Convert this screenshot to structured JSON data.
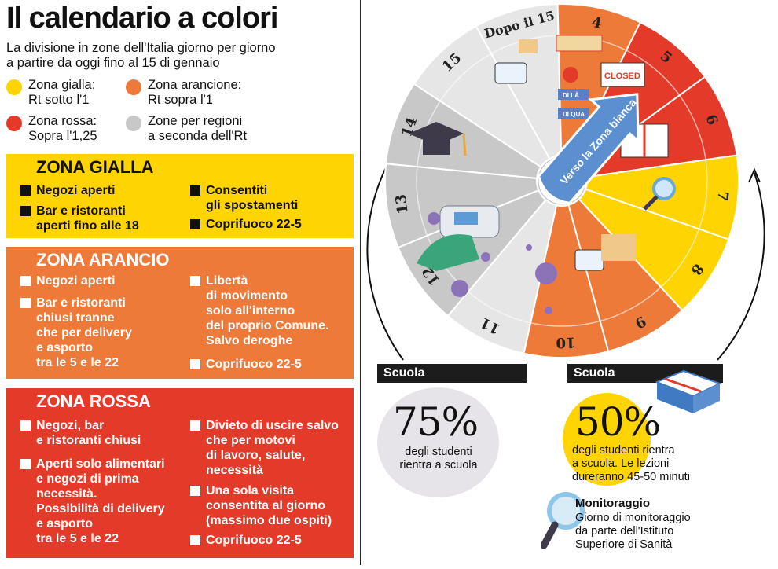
{
  "title": "Il calendario a colori",
  "subtitle_lines": [
    "La divisione in zone dell'Italia giorno per giorno",
    "a partire da oggi fino al 15 di gennaio"
  ],
  "legend": [
    {
      "line1": "Zona gialla:",
      "line2": "Rt sotto l'1",
      "color": "#ffd400"
    },
    {
      "line1": "Zona arancione:",
      "line2": "Rt sopra l'1",
      "color": "#ee7a3a"
    },
    {
      "line1": "Zona rossa:",
      "line2": "Sopra l'1,25",
      "color": "#e43a2a"
    },
    {
      "line1": "Zone per regioni",
      "line2": "a seconda dell'Rt",
      "color": "#c8c8c8"
    }
  ],
  "zona_gialla": {
    "title": "ZONA GIALLA",
    "left": [
      "Negozi aperti",
      "Bar e ristoranti",
      "aperti fino alle 18"
    ],
    "right": [
      "Consentiti",
      "gli spostamenti",
      "Coprifuoco 22-5"
    ]
  },
  "zona_arancio": {
    "title": "ZONA ARANCIO",
    "left": [
      "Negozi aperti",
      "Bar e ristoranti",
      "chiusi tranne",
      "che per delivery",
      "e asporto",
      "tra le 5 e le 22"
    ],
    "right": [
      "Libertà",
      "di movimento",
      "solo all'interno",
      "del proprio Comune.",
      "Salvo deroghe",
      "Coprifuoco 22-5"
    ]
  },
  "zona_rossa": {
    "title": "ZONA ROSSA",
    "left": [
      "Negozi, bar",
      "e ristoranti chiusi",
      "Aperti solo alimentari",
      "e negozi di prima",
      "necessità.",
      "Possibilità di delivery",
      "e asporto",
      "tra le 5 e le 22"
    ],
    "right": [
      "Divieto di uscire salvo",
      "che per motovi",
      "di lavoro, salute,",
      "necessità",
      "Una sola visita",
      "consentita al giorno",
      "(massimo due ospiti)",
      "Coprifuoco 22-5"
    ]
  },
  "wheel": {
    "days": [
      "4",
      "5",
      "6",
      "7",
      "8",
      "9",
      "10",
      "11",
      "12",
      "13",
      "14",
      "15"
    ],
    "after": "Dopo il 15",
    "arrow": "Verso la Zona bianca",
    "sign_closed": "CLOSED",
    "sign_dila": "DI LÀ",
    "sign_diqua": "DI QUA"
  },
  "school_left": {
    "bar": "Scuola",
    "pct": "75%",
    "text1": "degli studenti",
    "text2": "rientra a scuola"
  },
  "school_right": {
    "bar": "Scuola",
    "pct": "50%",
    "text1": "degli studenti rientra",
    "text2": "a scuola. Le lezioni",
    "text3": "dureranno 45-50 minuti"
  },
  "monitoraggio": {
    "title": "Monitoraggio",
    "text1": "Giorno di monitoraggio",
    "text2": "da parte dell'Istituto",
    "text3": "Superiore di Sanità"
  },
  "colors": {
    "yellow": "#ffd400",
    "orange": "#ee7a3a",
    "red": "#e43a2a",
    "grey": "#c8c8c8",
    "light": "#e6e6e6"
  }
}
